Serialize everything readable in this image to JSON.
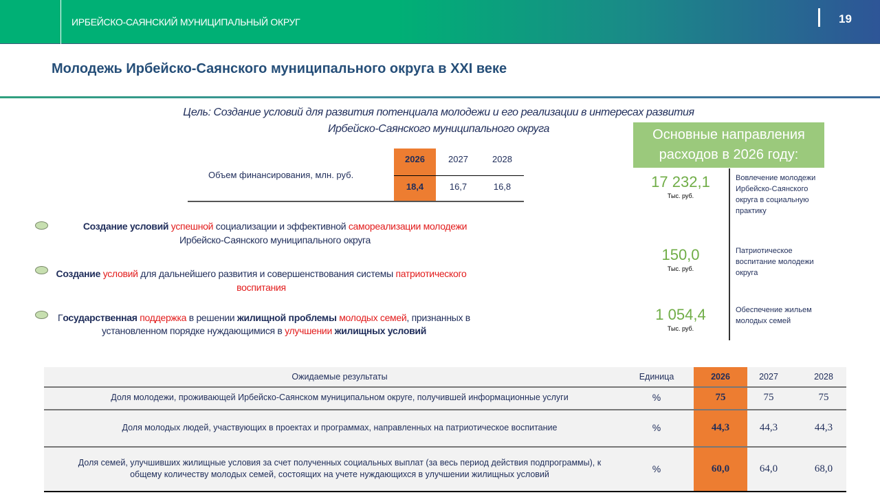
{
  "header": {
    "subtitle": "ИРБЕЙСКО-САЯНСКИЙ МУНИЦИПАЛЬНЫЙ ОКРУГ",
    "page_number": "19"
  },
  "title": "Молодежь Ирбейско-Саянского муниципального округа в XXI веке",
  "goal": {
    "line1": "Цель: Создание условий для развития потенциала молодежи и его реализации в интересах развития",
    "line2": "Ирбейско-Саянского муниципального округа"
  },
  "funding": {
    "label": "Объем финансирования, млн. руб.",
    "years": [
      "2026",
      "2027",
      "2028"
    ],
    "values": [
      "18,4",
      "16,7",
      "16,8"
    ],
    "highlight_color": "#ed7d31"
  },
  "directions": {
    "heading_line1": "Основные направления",
    "heading_line2": "расходов в 2026 году:",
    "items": [
      {
        "value": "17 232,1",
        "unit": "Тыс. руб.",
        "description": "Вовлечение молодежи Ирбейско-Саянского округа в социальную практику"
      },
      {
        "value": "150,0",
        "unit": "Тыс. руб.",
        "description": "Патриотическое воспитание молодежи округа"
      },
      {
        "value": "1 054,4",
        "unit": "Тыс. руб.",
        "description": "Обеспечение жильем молодых семей"
      }
    ]
  },
  "bullets": [
    {
      "segments": [
        {
          "t": "Создание условий ",
          "s": "b"
        },
        {
          "t": "успешной ",
          "s": "r"
        },
        {
          "t": " социализации  и эффективной ",
          "s": "n"
        },
        {
          "t": "самореализации молодежи ",
          "s": "r"
        },
        {
          "t": "Ирбейско-Саянского муниципального  округа",
          "s": "n"
        }
      ]
    },
    {
      "segments": [
        {
          "t": "Создание ",
          "s": "b"
        },
        {
          "t": "условий ",
          "s": "r"
        },
        {
          "t": " для дальнейшего  развития и совершенствования системы ",
          "s": "n"
        },
        {
          "t": "патриотического  воспитания",
          "s": "r"
        }
      ]
    },
    {
      "segments": [
        {
          "t": "Г",
          "s": "n"
        },
        {
          "t": "осударственная ",
          "s": "b"
        },
        {
          "t": "поддержка ",
          "s": "r"
        },
        {
          "t": "в решении  ",
          "s": "n"
        },
        {
          "t": "жилищной проблемы ",
          "s": "b"
        },
        {
          "t": "молодых  семей",
          "s": "r"
        },
        {
          "t": ", признанных  в установленном  порядке нуждающимися  в ",
          "s": "n"
        },
        {
          "t": "улучшении ",
          "s": "r"
        },
        {
          "t": " жилищных условий",
          "s": "b"
        }
      ]
    }
  ],
  "results": {
    "headers": [
      "Ожидаемые результаты",
      "Единица",
      "2026",
      "2027",
      "2028"
    ],
    "rows": [
      {
        "label": "Доля молодежи, проживающей Ирбейско-Саянском муниципальном округе, получившей информационные услуги",
        "unit": "%",
        "v2026": "75",
        "v2027": "75",
        "v2028": "75"
      },
      {
        "label": "Доля молодых людей, участвующих в проектах и программах, направленных на патриотическое воспитание",
        "unit": "%",
        "v2026": "44,3",
        "v2027": "44,3",
        "v2028": "44,3"
      },
      {
        "label": "Доля семей, улучшивших жилищные условия за счет полученных социальных выплат (за весь период действия подпрограммы), к общему количеству молодых семей, состоящих на учете нуждающихся в улучшении жилищных условий",
        "unit": "%",
        "v2026": "60,0",
        "v2027": "64,0",
        "v2028": "68,0"
      }
    ]
  }
}
